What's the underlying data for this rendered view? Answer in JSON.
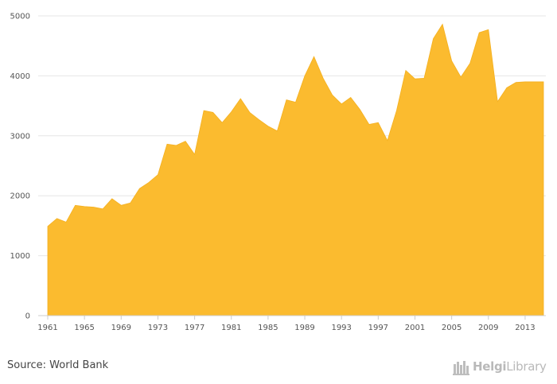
{
  "chart_data": {
    "type": "area",
    "title": "",
    "xlabel": "",
    "ylabel": "",
    "x": [
      1961,
      1962,
      1963,
      1964,
      1965,
      1966,
      1967,
      1968,
      1969,
      1970,
      1971,
      1972,
      1973,
      1974,
      1975,
      1976,
      1977,
      1978,
      1979,
      1980,
      1981,
      1982,
      1983,
      1984,
      1985,
      1986,
      1987,
      1988,
      1989,
      1990,
      1991,
      1992,
      1993,
      1994,
      1995,
      1996,
      1997,
      1998,
      1999,
      2000,
      2001,
      2002,
      2003,
      2004,
      2005,
      2006,
      2007,
      2008,
      2009,
      2010,
      2011,
      2012,
      2013,
      2014,
      2015
    ],
    "series": [
      {
        "values": [
          1490,
          1620,
          1560,
          1840,
          1820,
          1810,
          1780,
          1950,
          1840,
          1880,
          2120,
          2220,
          2350,
          2860,
          2840,
          2910,
          2690,
          3420,
          3390,
          3220,
          3400,
          3620,
          3390,
          3270,
          3160,
          3080,
          3600,
          3560,
          4000,
          4320,
          3960,
          3680,
          3530,
          3640,
          3440,
          3190,
          3220,
          2920,
          3420,
          4090,
          3950,
          3960,
          4620,
          4860,
          4250,
          3980,
          4210,
          4720,
          4770,
          3570,
          3800,
          3890,
          3900,
          3900,
          3900
        ]
      }
    ],
    "x_tick_labels": [
      "1961",
      "1965",
      "1969",
      "1973",
      "1977",
      "1981",
      "1985",
      "1989",
      "1993",
      "1997",
      "2001",
      "2005",
      "2009",
      "2013"
    ],
    "y_tick_labels": [
      "0",
      "1000",
      "2000",
      "3000",
      "4000",
      "5000"
    ],
    "ylim": [
      0,
      5000
    ],
    "grid": "horizontal",
    "colors": {
      "area": "#fbbb2f",
      "grid": "#e6e6e6",
      "axis": "#cccccc"
    }
  },
  "footer": {
    "source": "Source: World Bank",
    "logo_text_bold": "Helgi",
    "logo_text_light": "Library"
  }
}
